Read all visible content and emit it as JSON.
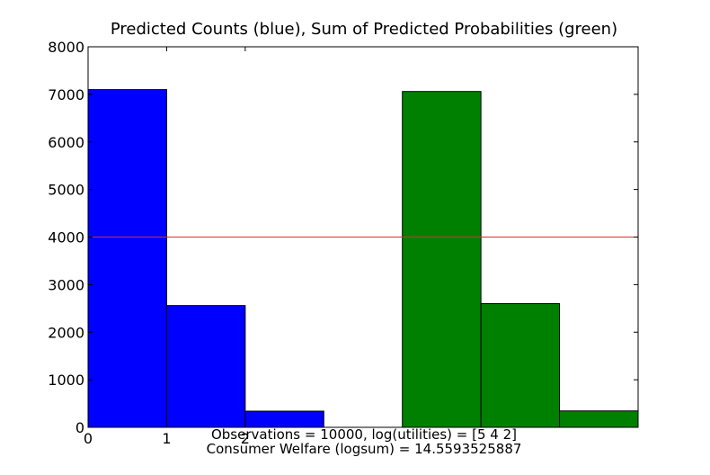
{
  "chart_data": {
    "type": "bar",
    "title": "Predicted Counts (blue), Sum of Predicted Probabilities (green)",
    "xlabel": "",
    "ylabel": "",
    "xlim": [
      0,
      7
    ],
    "ylim": [
      0,
      8000
    ],
    "x_ticks": [
      "0",
      "1",
      "2"
    ],
    "y_ticks": [
      "0",
      "1000",
      "2000",
      "3000",
      "4000",
      "5000",
      "6000",
      "7000",
      "8000"
    ],
    "grid": false,
    "series": [
      {
        "color": "#0000ff",
        "x": [
          0,
          1,
          2
        ],
        "values": [
          7100,
          2560,
          340
        ]
      },
      {
        "color": "#008000",
        "x": [
          4,
          5,
          6
        ],
        "values": [
          7060,
          2600,
          345
        ]
      }
    ],
    "reference_line": {
      "y": 4000,
      "color": "#cc3333"
    },
    "annotations": [
      "Observations = 10000, log(utilities) = [5 4 2]",
      "Consumer Welfare (logsum) = 14.5593525887"
    ]
  }
}
